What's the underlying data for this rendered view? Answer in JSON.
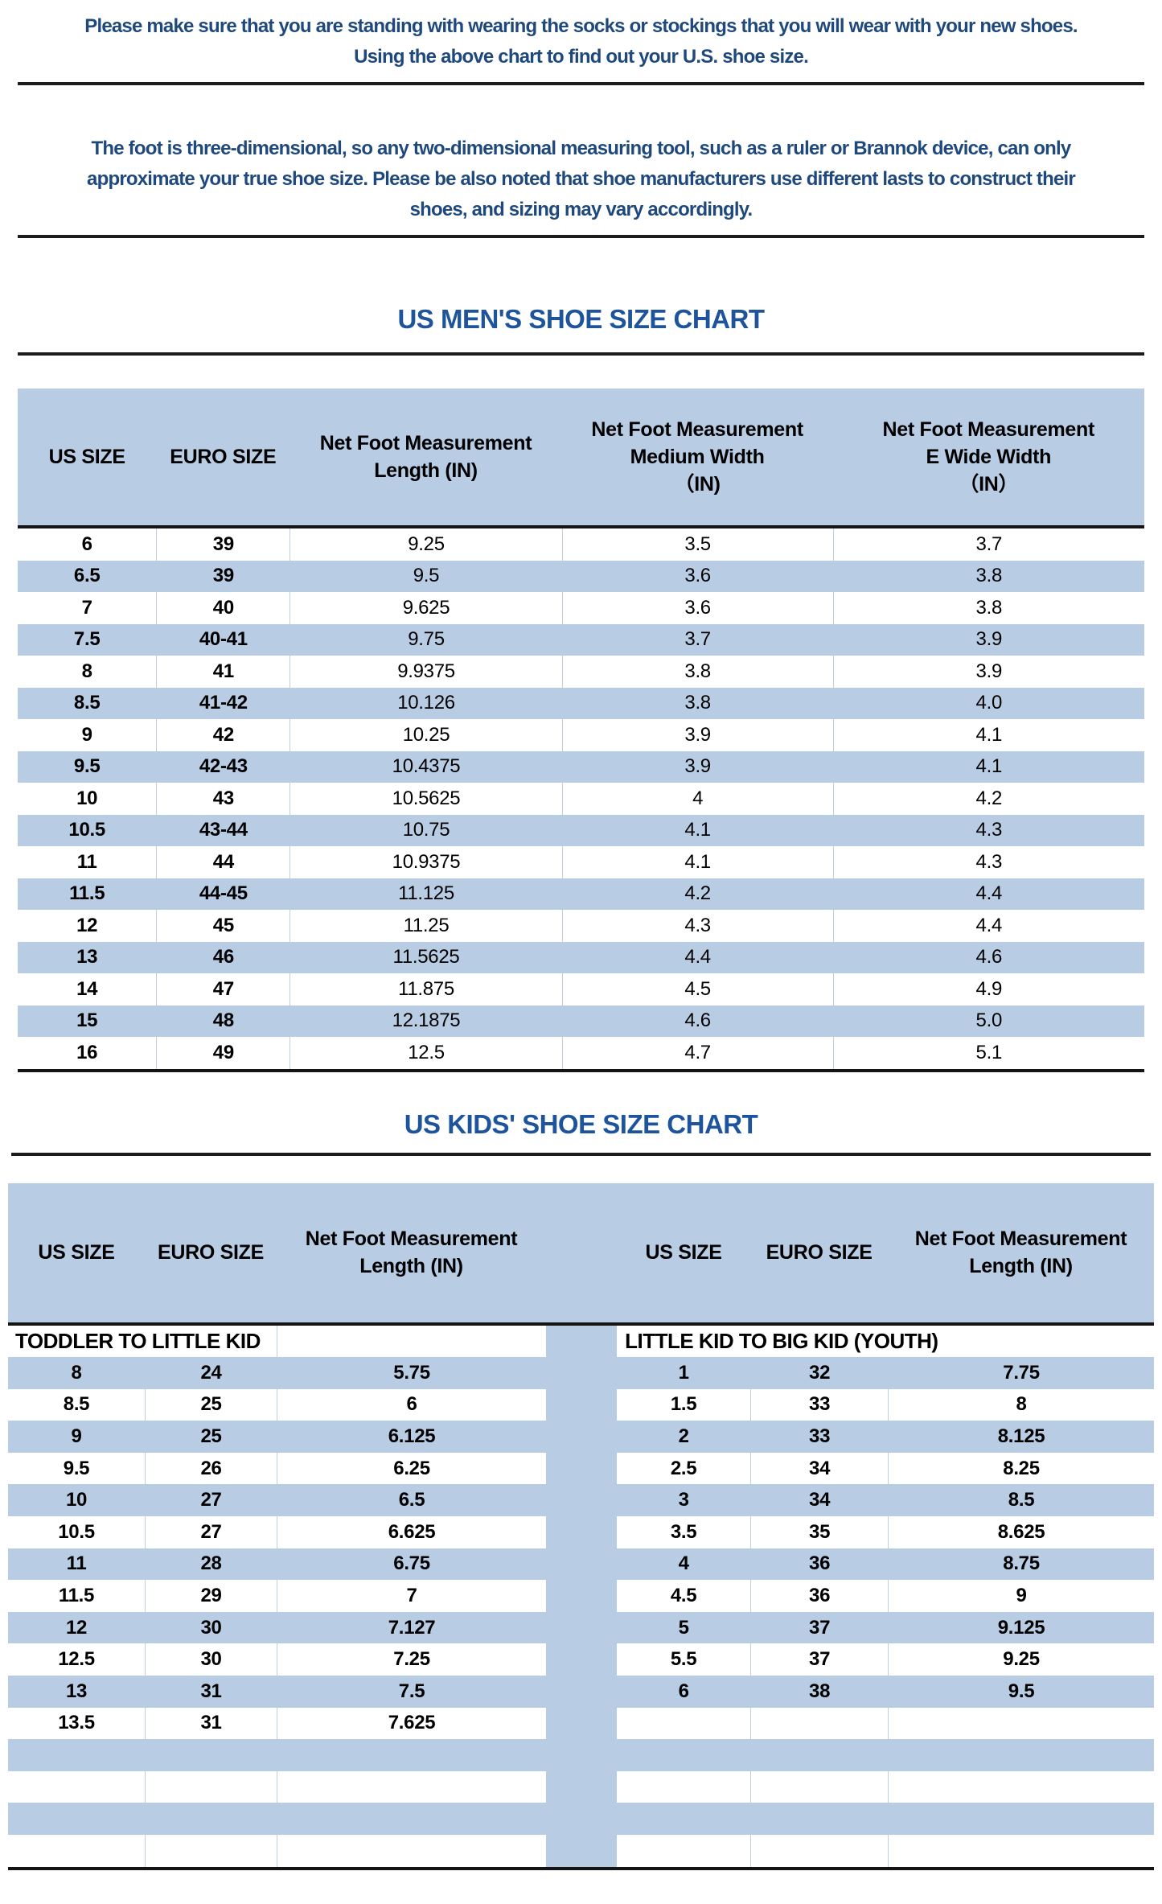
{
  "intro": {
    "lines": [
      "Please make sure that you are standing with wearing the socks or stockings that you will wear with your new shoes.",
      "Using the above chart to find out your U.S. shoe size."
    ]
  },
  "note": {
    "lines": [
      "The foot is three-dimensional, so any two-dimensional measuring tool, such as a ruler or Brannok device, can only",
      "approximate your true shoe size. Please be also noted that shoe manufacturers use different lasts to construct their",
      "shoes, and sizing may vary accordingly."
    ]
  },
  "mens_chart": {
    "title": "US MEN'S SHOE SIZE CHART",
    "headers": [
      {
        "lines": [
          "US SIZE"
        ]
      },
      {
        "lines": [
          "EURO SIZE"
        ]
      },
      {
        "lines": [
          "Net Foot Measurement",
          "Length (IN)"
        ]
      },
      {
        "lines": [
          "Net Foot Measurement",
          "Medium Width",
          "（IN)"
        ]
      },
      {
        "lines": [
          "Net Foot Measurement",
          "E Wide Width",
          "（IN）"
        ]
      }
    ],
    "rows": [
      [
        "6",
        "39",
        "9.25",
        "3.5",
        "3.7"
      ],
      [
        "6.5",
        "39",
        "9.5",
        "3.6",
        "3.8"
      ],
      [
        "7",
        "40",
        "9.625",
        "3.6",
        "3.8"
      ],
      [
        "7.5",
        "40-41",
        "9.75",
        "3.7",
        "3.9"
      ],
      [
        "8",
        "41",
        "9.9375",
        "3.8",
        "3.9"
      ],
      [
        "8.5",
        "41-42",
        "10.126",
        "3.8",
        "4.0"
      ],
      [
        "9",
        "42",
        "10.25",
        "3.9",
        "4.1"
      ],
      [
        "9.5",
        "42-43",
        "10.4375",
        "3.9",
        "4.1"
      ],
      [
        "10",
        "43",
        "10.5625",
        "4",
        "4.2"
      ],
      [
        "10.5",
        "43-44",
        "10.75",
        "4.1",
        "4.3"
      ],
      [
        "11",
        "44",
        "10.9375",
        "4.1",
        "4.3"
      ],
      [
        "11.5",
        "44-45",
        "11.125",
        "4.2",
        "4.4"
      ],
      [
        "12",
        "45",
        "11.25",
        "4.3",
        "4.4"
      ],
      [
        "13",
        "46",
        "11.5625",
        "4.4",
        "4.6"
      ],
      [
        "14",
        "47",
        "11.875",
        "4.5",
        "4.9"
      ],
      [
        "15",
        "48",
        "12.1875",
        "4.6",
        "5.0"
      ],
      [
        "16",
        "49",
        "12.5",
        "4.7",
        "5.1"
      ]
    ]
  },
  "kids_chart": {
    "title": "US KIDS' SHOE SIZE CHART",
    "headers": [
      {
        "lines": [
          "US SIZE"
        ]
      },
      {
        "lines": [
          "EURO SIZE"
        ]
      },
      {
        "lines": [
          "Net Foot Measurement",
          "Length (IN)"
        ]
      },
      {
        "lines": [
          "US SIZE"
        ]
      },
      {
        "lines": [
          "EURO SIZE"
        ]
      },
      {
        "lines": [
          "Net Foot Measurement",
          "Length (IN)"
        ]
      }
    ],
    "sections": {
      "left": "TODDLER TO LITTLE KID",
      "right": "LITTLE KID TO BIG KID (YOUTH)"
    },
    "rows": [
      [
        "8",
        "24",
        "5.75",
        "1",
        "32",
        "7.75"
      ],
      [
        "8.5",
        "25",
        "6",
        "1.5",
        "33",
        "8"
      ],
      [
        "9",
        "25",
        "6.125",
        "2",
        "33",
        "8.125"
      ],
      [
        "9.5",
        "26",
        "6.25",
        "2.5",
        "34",
        "8.25"
      ],
      [
        "10",
        "27",
        "6.5",
        "3",
        "34",
        "8.5"
      ],
      [
        "10.5",
        "27",
        "6.625",
        "3.5",
        "35",
        "8.625"
      ],
      [
        "11",
        "28",
        "6.75",
        "4",
        "36",
        "8.75"
      ],
      [
        "11.5",
        "29",
        "7",
        "4.5",
        "36",
        "9"
      ],
      [
        "12",
        "30",
        "7.127",
        "5",
        "37",
        "9.125"
      ],
      [
        "12.5",
        "30",
        "7.25",
        "5.5",
        "37",
        "9.25"
      ],
      [
        "13",
        "31",
        "7.5",
        "6",
        "38",
        "9.5"
      ],
      [
        "13.5",
        "31",
        "7.625",
        "",
        "",
        ""
      ],
      [
        "",
        "",
        "",
        "",
        "",
        ""
      ],
      [
        "",
        "",
        "",
        "",
        "",
        ""
      ],
      [
        "",
        "",
        "",
        "",
        "",
        ""
      ],
      [
        "",
        "",
        "",
        "",
        "",
        ""
      ]
    ]
  },
  "colors": {
    "accent_blue": "#b8cce4",
    "title_blue": "#1e549b",
    "paragraph_blue": "#1f497d",
    "border_black": "#1c1c1c"
  }
}
